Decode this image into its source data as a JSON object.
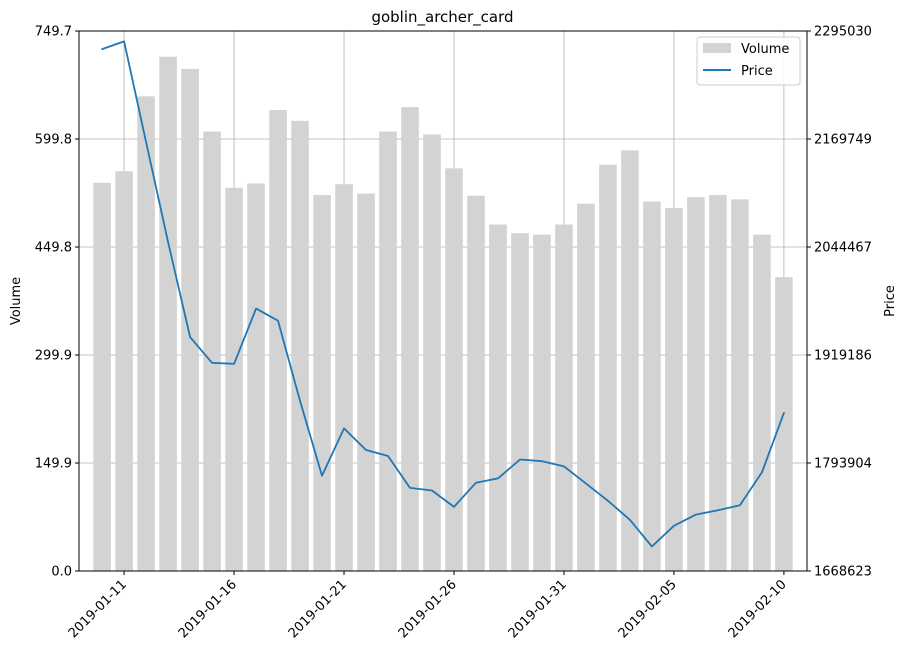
{
  "chart_data": {
    "type": "bar+line",
    "title": "goblin_archer_card",
    "xlabel": "",
    "ylabel_left": "Volume",
    "ylabel_right": "Price",
    "ylim_left": [
      0,
      749.7
    ],
    "ylim_right": [
      1668623,
      2295030
    ],
    "yticks_left": [
      "0.0",
      "149.9",
      "299.9",
      "449.8",
      "599.8",
      "749.7"
    ],
    "yticks_right": [
      "1668623",
      "1793904",
      "1919186",
      "2044467",
      "2169749",
      "2295030"
    ],
    "xticks": [
      "2019-01-11",
      "2019-01-16",
      "2019-01-21",
      "2019-01-26",
      "2019-01-31",
      "2019-02-05",
      "2019-02-10"
    ],
    "grid": true,
    "legend_position": "top-right",
    "colors": {
      "volume": "#d3d3d3",
      "price": "#1f77b4"
    },
    "dates": [
      "2019-01-10",
      "2019-01-11",
      "2019-01-12",
      "2019-01-13",
      "2019-01-14",
      "2019-01-15",
      "2019-01-16",
      "2019-01-17",
      "2019-01-18",
      "2019-01-19",
      "2019-01-20",
      "2019-01-21",
      "2019-01-22",
      "2019-01-23",
      "2019-01-24",
      "2019-01-25",
      "2019-01-26",
      "2019-01-27",
      "2019-01-28",
      "2019-01-29",
      "2019-01-30",
      "2019-01-31",
      "2019-02-01",
      "2019-02-02",
      "2019-02-03",
      "2019-02-04",
      "2019-02-05",
      "2019-02-06",
      "2019-02-07",
      "2019-02-08",
      "2019-02-09",
      "2019-02-10"
    ],
    "series": [
      {
        "name": "Volume",
        "type": "bar",
        "values": [
          539,
          555,
          659,
          714,
          697,
          610,
          532,
          538,
          640,
          625,
          522,
          537,
          524,
          610,
          644,
          606,
          559,
          521,
          481,
          469,
          467,
          481,
          510,
          564,
          584,
          513,
          504,
          519,
          522,
          516,
          467,
          408
        ]
      },
      {
        "name": "Price",
        "type": "line",
        "values": [
          2274000,
          2283000,
          2166000,
          2050000,
          1940000,
          1910000,
          1909000,
          1973000,
          1959000,
          1866000,
          1779000,
          1834000,
          1809000,
          1802000,
          1765000,
          1762000,
          1743000,
          1771000,
          1776000,
          1798000,
          1796000,
          1790000,
          1770000,
          1750000,
          1728000,
          1697000,
          1721000,
          1734000,
          1739000,
          1745000,
          1783000,
          1852000
        ]
      }
    ]
  }
}
